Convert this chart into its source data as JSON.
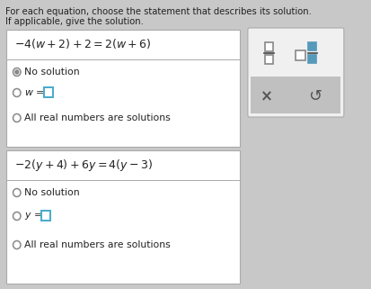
{
  "title_line1": "For each equation, choose the statement that describes its solution.",
  "title_line2": "If applicable, give the solution.",
  "page_bg": "#c8c8c8",
  "box_bg": "#ffffff",
  "box_border": "#aaaaaa",
  "text_color": "#222222",
  "radio_color": "#888888",
  "radio_filled_outer": "#888888",
  "eq1": "-4(w + 2) + 2 = 2(w + 6)",
  "eq2": "-2(y + 4) + 6y = 4(y - 3)",
  "opt1": [
    "No solution",
    "w =",
    "All real numbers are solutions"
  ],
  "opt2": [
    "No solution",
    "y =",
    "All real numbers are solutions"
  ],
  "panel_white_bg": "#f0f0f0",
  "panel_gray_bg": "#c0c0c0",
  "panel_border": "#aaaaaa",
  "frac_color": "#5599bb",
  "input_box_color": "#44aacc",
  "title_fontsize": 7.2,
  "eq_fontsize": 9.0,
  "opt_fontsize": 7.8
}
